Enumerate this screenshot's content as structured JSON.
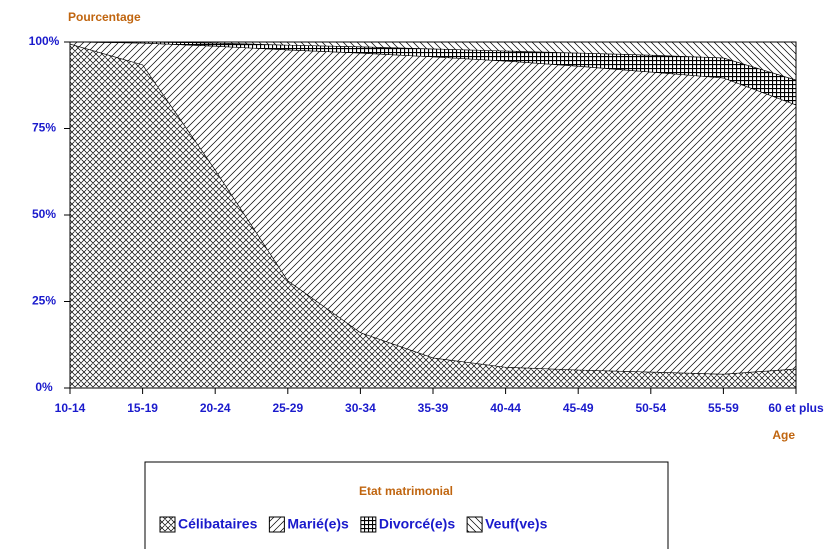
{
  "chart_data": {
    "type": "stacked_area",
    "y_label": "Pourcentage",
    "x_label": "Age",
    "categories": [
      "10-14",
      "15-19",
      "20-24",
      "25-29",
      "30-34",
      "35-39",
      "40-44",
      "45-49",
      "50-54",
      "55-59",
      "60 et plus"
    ],
    "ylim": [
      0,
      100
    ],
    "yticks": [
      {
        "value": 0,
        "label": "0%"
      },
      {
        "value": 25,
        "label": "25%"
      },
      {
        "value": 50,
        "label": "50%"
      },
      {
        "value": 75,
        "label": "75%"
      },
      {
        "value": 100,
        "label": "100%"
      }
    ],
    "legend_title": "Etat matrimonial",
    "series": [
      {
        "name": "Célibataires",
        "pattern": "crosshatch",
        "values": [
          99.4,
          93.4,
          63,
          31,
          16,
          8.7,
          6,
          5.2,
          4.6,
          4,
          5.5
        ]
      },
      {
        "name": "Marié(e)s",
        "pattern": "forward-diagonal",
        "values": [
          0.6,
          6.3,
          35.8,
          66.7,
          80.8,
          87,
          88.5,
          87.8,
          86.7,
          85.6,
          76.3
        ]
      },
      {
        "name": "Divorcé(e)s",
        "pattern": "grid",
        "values": [
          0,
          0.3,
          0.9,
          1.4,
          1.8,
          2.3,
          2.9,
          3.8,
          4.9,
          5.8,
          7.2
        ]
      },
      {
        "name": "Veuf(ve)s",
        "pattern": "back-diagonal",
        "values": [
          0,
          0,
          0.3,
          0.9,
          1.4,
          2,
          2.6,
          3.2,
          3.8,
          4.6,
          11
        ]
      }
    ]
  }
}
